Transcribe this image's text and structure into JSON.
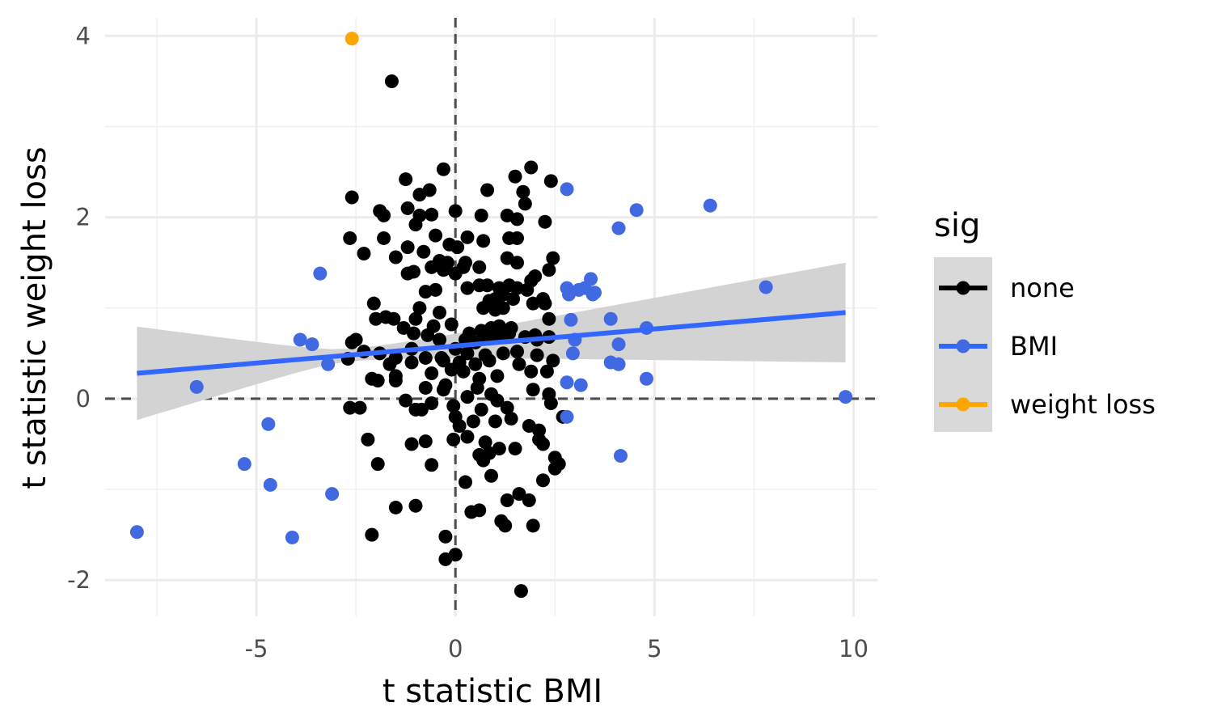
{
  "chart_data": {
    "type": "scatter",
    "xlabel": "t statistic BMI",
    "ylabel": "t statistic weight loss",
    "xlim": [
      -8.8,
      10.6
    ],
    "ylim": [
      -2.4,
      4.2
    ],
    "x_ticks": [
      -5,
      0,
      5,
      10
    ],
    "x_tick_labels": [
      "-5",
      "0",
      "5",
      "10"
    ],
    "y_ticks": [
      -2,
      0,
      2,
      4
    ],
    "y_tick_labels": [
      "-2",
      "0",
      "2",
      "4"
    ],
    "grid": true,
    "reference_lines": {
      "x": 0,
      "y": 0,
      "style": "dashed"
    },
    "legend": {
      "title": "sig",
      "position": "right",
      "entries": [
        {
          "label": "none",
          "color": "#000000"
        },
        {
          "label": "BMI",
          "color": "#4169E1"
        },
        {
          "label": "weight loss",
          "color": "#FFA500"
        }
      ]
    },
    "trend_line": {
      "color": "#3366FF",
      "x": [
        -8.0,
        9.8
      ],
      "y": [
        0.28,
        0.95
      ],
      "ci_lower": [
        -0.23,
        0.4
      ],
      "ci_upper": [
        0.8,
        1.5
      ],
      "ci_color": "#d3d3d3"
    },
    "series": [
      {
        "name": "none",
        "color": "#000000",
        "points": [
          [
            -1.6,
            3.5
          ],
          [
            -0.3,
            2.53
          ],
          [
            1.5,
            2.45
          ],
          [
            1.9,
            2.55
          ],
          [
            -2.6,
            2.22
          ],
          [
            -1.25,
            2.42
          ],
          [
            -0.65,
            2.3
          ],
          [
            0.8,
            2.3
          ],
          [
            1.7,
            2.28
          ],
          [
            2.4,
            2.4
          ],
          [
            -0.9,
            2.25
          ],
          [
            -1.9,
            2.07
          ],
          [
            -1.8,
            2.02
          ],
          [
            -1.2,
            2.1
          ],
          [
            -0.9,
            2.02
          ],
          [
            -0.6,
            2.03
          ],
          [
            0.0,
            2.07
          ],
          [
            0.65,
            2.02
          ],
          [
            1.3,
            2.02
          ],
          [
            1.55,
            1.98
          ],
          [
            1.75,
            2.15
          ],
          [
            2.25,
            1.95
          ],
          [
            -1.0,
            1.92
          ],
          [
            -0.5,
            1.8
          ],
          [
            -2.65,
            1.77
          ],
          [
            -1.8,
            1.77
          ],
          [
            -2.3,
            1.6
          ],
          [
            -1.5,
            1.56
          ],
          [
            -1.2,
            1.67
          ],
          [
            -0.8,
            1.62
          ],
          [
            -0.15,
            1.7
          ],
          [
            0.05,
            1.67
          ],
          [
            0.3,
            1.78
          ],
          [
            0.7,
            1.74
          ],
          [
            1.35,
            1.77
          ],
          [
            1.55,
            1.77
          ],
          [
            2.45,
            1.55
          ],
          [
            -0.4,
            1.52
          ],
          [
            -0.2,
            1.5
          ],
          [
            0.25,
            1.5
          ],
          [
            0.6,
            1.45
          ],
          [
            1.3,
            1.55
          ],
          [
            1.55,
            1.5
          ],
          [
            -1.2,
            1.38
          ],
          [
            -1.05,
            1.4
          ],
          [
            -0.6,
            1.45
          ],
          [
            -0.3,
            1.42
          ],
          [
            0.0,
            1.38
          ],
          [
            0.2,
            1.45
          ],
          [
            0.8,
            1.25
          ],
          [
            1.1,
            1.22
          ],
          [
            1.35,
            1.25
          ],
          [
            1.9,
            1.3
          ],
          [
            2.0,
            1.35
          ],
          [
            2.35,
            1.42
          ],
          [
            -0.75,
            1.18
          ],
          [
            -0.5,
            1.2
          ],
          [
            0.3,
            1.22
          ],
          [
            0.6,
            1.25
          ],
          [
            1.0,
            1.1
          ],
          [
            1.2,
            1.15
          ],
          [
            1.55,
            1.22
          ],
          [
            1.8,
            1.2
          ],
          [
            2.2,
            1.1
          ],
          [
            -2.05,
            1.05
          ],
          [
            -0.9,
            1.0
          ],
          [
            -0.4,
            0.95
          ],
          [
            0.7,
            1.0
          ],
          [
            0.85,
            1.08
          ],
          [
            1.0,
            0.98
          ],
          [
            1.2,
            1.0
          ],
          [
            1.45,
            1.1
          ],
          [
            1.95,
            1.05
          ],
          [
            2.25,
            1.05
          ],
          [
            -2.6,
            0.62
          ],
          [
            -2.0,
            0.88
          ],
          [
            -1.75,
            0.9
          ],
          [
            -1.55,
            0.88
          ],
          [
            -1.3,
            0.78
          ],
          [
            -1.0,
            0.88
          ],
          [
            -0.55,
            0.8
          ],
          [
            -0.1,
            0.82
          ],
          [
            0.35,
            0.72
          ],
          [
            0.65,
            0.75
          ],
          [
            0.9,
            0.78
          ],
          [
            1.1,
            0.8
          ],
          [
            1.4,
            0.78
          ],
          [
            2.0,
            0.7
          ],
          [
            2.35,
            0.88
          ],
          [
            -2.5,
            0.65
          ],
          [
            -1.05,
            0.72
          ],
          [
            -0.7,
            0.7
          ],
          [
            -0.4,
            0.65
          ],
          [
            0.0,
            0.55
          ],
          [
            0.25,
            0.65
          ],
          [
            0.5,
            0.62
          ],
          [
            0.8,
            0.68
          ],
          [
            1.1,
            0.68
          ],
          [
            1.35,
            0.72
          ],
          [
            1.75,
            0.68
          ],
          [
            2.05,
            0.65
          ],
          [
            2.35,
            0.68
          ],
          [
            -2.3,
            0.52
          ],
          [
            -1.9,
            0.5
          ],
          [
            -1.5,
            0.45
          ],
          [
            -1.1,
            0.55
          ],
          [
            -0.75,
            0.45
          ],
          [
            -0.35,
            0.45
          ],
          [
            0.3,
            0.5
          ],
          [
            0.75,
            0.48
          ],
          [
            1.2,
            0.5
          ],
          [
            1.55,
            0.52
          ],
          [
            2.05,
            0.48
          ],
          [
            -2.7,
            0.44
          ],
          [
            -1.65,
            0.38
          ],
          [
            -1.1,
            0.4
          ],
          [
            -0.3,
            0.42
          ],
          [
            0.1,
            0.4
          ],
          [
            0.5,
            0.38
          ],
          [
            0.85,
            0.42
          ],
          [
            1.6,
            0.38
          ],
          [
            2.45,
            0.42
          ],
          [
            -2.1,
            0.22
          ],
          [
            -1.5,
            0.25
          ],
          [
            -0.6,
            0.28
          ],
          [
            -0.1,
            0.32
          ],
          [
            0.2,
            0.3
          ],
          [
            0.6,
            0.22
          ],
          [
            1.05,
            0.25
          ],
          [
            1.9,
            0.3
          ],
          [
            2.3,
            0.3
          ],
          [
            -1.95,
            0.2
          ],
          [
            -1.5,
            0.2
          ],
          [
            -0.75,
            0.12
          ],
          [
            -0.3,
            0.1
          ],
          [
            0.55,
            0.12
          ],
          [
            0.9,
            0.05
          ],
          [
            1.95,
            0.1
          ],
          [
            2.35,
            0.05
          ],
          [
            -0.25,
            0.15
          ],
          [
            -1.25,
            -0.02
          ],
          [
            -0.05,
            -0.08
          ],
          [
            0.3,
            0.02
          ],
          [
            -2.65,
            -0.1
          ],
          [
            -2.4,
            -0.1
          ],
          [
            -1.0,
            -0.12
          ],
          [
            -0.85,
            -0.12
          ],
          [
            -0.6,
            -0.05
          ],
          [
            0.0,
            -0.2
          ],
          [
            0.65,
            -0.12
          ],
          [
            1.05,
            -0.02
          ],
          [
            1.3,
            -0.1
          ],
          [
            2.4,
            -0.05
          ],
          [
            0.1,
            -0.3
          ],
          [
            0.45,
            -0.25
          ],
          [
            1.0,
            -0.25
          ],
          [
            1.4,
            -0.22
          ],
          [
            1.85,
            -0.3
          ],
          [
            2.1,
            -0.35
          ],
          [
            2.7,
            -0.2
          ],
          [
            -0.05,
            -0.45
          ],
          [
            0.3,
            -0.42
          ],
          [
            0.75,
            -0.48
          ],
          [
            -2.2,
            -0.45
          ],
          [
            -1.1,
            -0.5
          ],
          [
            -0.75,
            -0.47
          ],
          [
            0.6,
            -0.62
          ],
          [
            0.85,
            -0.6
          ],
          [
            1.1,
            -0.55
          ],
          [
            1.5,
            -0.55
          ],
          [
            2.1,
            -0.45
          ],
          [
            2.2,
            -0.5
          ],
          [
            -1.95,
            -0.72
          ],
          [
            -0.6,
            -0.73
          ],
          [
            0.7,
            -0.68
          ],
          [
            0.9,
            -0.85
          ],
          [
            2.5,
            -0.65
          ],
          [
            2.6,
            -0.72
          ],
          [
            2.5,
            -0.77
          ],
          [
            2.2,
            -0.9
          ],
          [
            0.25,
            -0.92
          ],
          [
            1.3,
            -1.12
          ],
          [
            1.6,
            -1.05
          ],
          [
            1.85,
            -1.12
          ],
          [
            -1.5,
            -1.2
          ],
          [
            -1.0,
            -1.18
          ],
          [
            0.4,
            -1.25
          ],
          [
            0.6,
            -1.23
          ],
          [
            1.15,
            -1.35
          ],
          [
            1.25,
            -1.4
          ],
          [
            1.95,
            -1.4
          ],
          [
            -2.1,
            -1.5
          ],
          [
            -0.25,
            -1.52
          ],
          [
            -0.25,
            -1.77
          ],
          [
            0.0,
            -1.72
          ],
          [
            1.65,
            -2.12
          ]
        ]
      },
      {
        "name": "BMI",
        "color": "#4169E1",
        "points": [
          [
            2.8,
            2.31
          ],
          [
            4.55,
            2.08
          ],
          [
            6.4,
            2.13
          ],
          [
            4.1,
            1.88
          ],
          [
            -3.4,
            1.38
          ],
          [
            7.8,
            1.23
          ],
          [
            2.8,
            1.22
          ],
          [
            2.85,
            1.15
          ],
          [
            3.1,
            1.2
          ],
          [
            3.25,
            1.22
          ],
          [
            3.4,
            1.32
          ],
          [
            3.45,
            1.15
          ],
          [
            3.5,
            1.17
          ],
          [
            2.9,
            0.87
          ],
          [
            3.9,
            0.88
          ],
          [
            4.8,
            0.78
          ],
          [
            3.0,
            0.65
          ],
          [
            2.95,
            0.5
          ],
          [
            3.9,
            0.4
          ],
          [
            4.1,
            0.38
          ],
          [
            4.1,
            0.6
          ],
          [
            -3.9,
            0.65
          ],
          [
            -3.6,
            0.6
          ],
          [
            -3.2,
            0.38
          ],
          [
            -6.5,
            0.13
          ],
          [
            2.8,
            0.18
          ],
          [
            3.15,
            0.15
          ],
          [
            4.8,
            0.22
          ],
          [
            9.8,
            0.02
          ],
          [
            2.8,
            -0.2
          ],
          [
            4.15,
            -0.63
          ],
          [
            -4.7,
            -0.28
          ],
          [
            -5.3,
            -0.72
          ],
          [
            -4.65,
            -0.95
          ],
          [
            -3.1,
            -1.05
          ],
          [
            -8.0,
            -1.47
          ],
          [
            -4.1,
            -1.53
          ]
        ]
      },
      {
        "name": "weight loss",
        "color": "#FFA500",
        "points": [
          [
            -2.6,
            3.97
          ]
        ]
      }
    ]
  }
}
